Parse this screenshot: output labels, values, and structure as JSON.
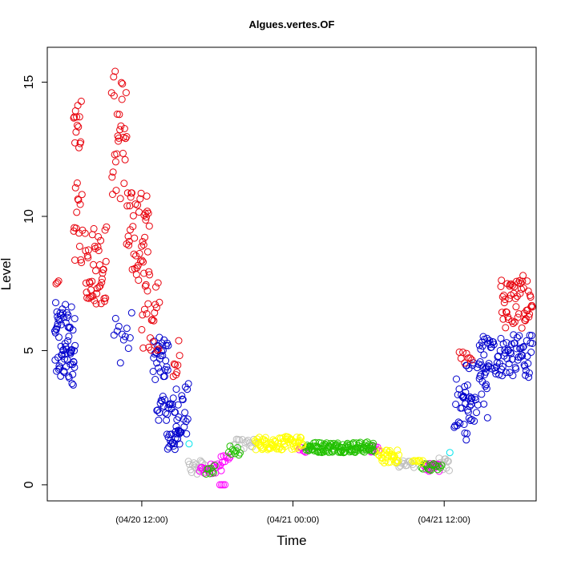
{
  "chart_data": {
    "type": "scatter",
    "title": "Algues.vertes.OF",
    "xlabel": "Time",
    "ylabel": "Level",
    "x_unit": "hours since 04/20 00:00",
    "xlim": [
      4.5,
      43.3
    ],
    "ylim": [
      -0.6,
      16.3
    ],
    "x_ticks": [
      {
        "value": 12,
        "label": "(04/20 12:00)"
      },
      {
        "value": 24,
        "label": "(04/21 00:00)"
      },
      {
        "value": 36,
        "label": "(04/21 12:00)"
      }
    ],
    "y_ticks": [
      {
        "value": 0,
        "label": "0"
      },
      {
        "value": 5,
        "label": "5"
      },
      {
        "value": 10,
        "label": "10"
      },
      {
        "value": 15,
        "label": "15"
      }
    ],
    "grid": false,
    "legend": "none",
    "marker": "open-circle",
    "colors": {
      "red": "#e8000b",
      "blue": "#0000cc",
      "cyan": "#00e5ee",
      "gray": "#bebebe",
      "magenta": "#ff00ff",
      "green": "#22c000",
      "yellow": "#ffff00"
    },
    "series": [
      {
        "color": "blue",
        "segments": [
          {
            "x": [
              5.1,
              6.7
            ],
            "y": [
              [
                3.7,
                6.8
              ]
            ],
            "n": 70
          },
          {
            "x": [
              9.8,
              11.2
            ],
            "y": [
              [
                4.5,
                6.5
              ]
            ],
            "n": 12
          },
          {
            "x": [
              12.9,
              14.1
            ],
            "y": [
              [
                3.9,
                5.5
              ]
            ],
            "n": 30
          },
          {
            "x": [
              13.2,
              14.5
            ],
            "y": [
              [
                2.4,
                3.3
              ]
            ],
            "n": 20
          },
          {
            "x": [
              14.0,
              15.0
            ],
            "y": [
              [
                1.2,
                2.2
              ]
            ],
            "n": 20
          },
          {
            "x": [
              14.6,
              15.7
            ],
            "y": [
              [
                1.7,
                3.8
              ]
            ],
            "n": 24
          },
          {
            "x": [
              36.8,
              38.2
            ],
            "y": [
              [
                1.6,
                4.0
              ]
            ],
            "n": 26
          },
          {
            "x": [
              37.5,
              39.5
            ],
            "y": [
              [
                2.3,
                4.6
              ]
            ],
            "n": 35
          },
          {
            "x": [
              38.8,
              43.0
            ],
            "y": [
              [
                4.0,
                5.6
              ]
            ],
            "n": 85
          }
        ]
      },
      {
        "color": "red",
        "segments": [
          {
            "x": [
              5.2,
              5.4
            ],
            "y": [
              [
                7.2,
                7.6
              ]
            ],
            "n": 3
          },
          {
            "x": [
              6.6,
              7.2
            ],
            "y": [
              [
                12.5,
                14.3
              ]
            ],
            "n": 14
          },
          {
            "x": [
              6.6,
              7.3
            ],
            "y": [
              [
                8.2,
                11.3
              ]
            ],
            "n": 16
          },
          {
            "x": [
              7.5,
              9.2
            ],
            "y": [
              [
                6.7,
                9.8
              ]
            ],
            "n": 45
          },
          {
            "x": [
              9.6,
              10.8
            ],
            "y": [
              [
                10.5,
                15.6
              ]
            ],
            "n": 30
          },
          {
            "x": [
              10.8,
              12.6
            ],
            "y": [
              [
                7.6,
                11.0
              ]
            ],
            "n": 45
          },
          {
            "x": [
              12.0,
              13.4
            ],
            "y": [
              [
                5.0,
                8.0
              ]
            ],
            "n": 26
          },
          {
            "x": [
              14.5,
              15.0
            ],
            "y": [
              [
                4.0,
                5.4
              ]
            ],
            "n": 8
          },
          {
            "x": [
              37.2,
              38.2
            ],
            "y": [
              [
                4.5,
                5.0
              ]
            ],
            "n": 8
          },
          {
            "x": [
              40.5,
              43.0
            ],
            "y": [
              [
                5.8,
                7.8
              ]
            ],
            "n": 55
          }
        ]
      },
      {
        "color": "cyan",
        "segments": [
          {
            "x": [
              15.7,
              15.8
            ],
            "y": [
              [
                1.5,
                1.6
              ]
            ],
            "n": 1
          },
          {
            "x": [
              36.4,
              36.5
            ],
            "y": [
              [
                1.2,
                1.2
              ]
            ],
            "n": 1
          }
        ]
      },
      {
        "color": "gray",
        "segments": [
          {
            "x": [
              15.7,
              17.0
            ],
            "y": [
              [
                0.4,
                0.9
              ]
            ],
            "n": 16
          },
          {
            "x": [
              19.3,
              21.0
            ],
            "y": [
              [
                1.3,
                1.7
              ]
            ],
            "n": 16
          },
          {
            "x": [
              32.2,
              33.6
            ],
            "y": [
              [
                0.6,
                0.9
              ]
            ],
            "n": 14
          },
          {
            "x": [
              35.6,
              36.4
            ],
            "y": [
              [
                0.5,
                1.0
              ]
            ],
            "n": 12
          }
        ]
      },
      {
        "color": "magenta",
        "segments": [
          {
            "x": [
              16.6,
              18.3
            ],
            "y": [
              [
                0.4,
                0.8
              ]
            ],
            "n": 20
          },
          {
            "x": [
              18.2,
              18.6
            ],
            "y": [
              [
                0.0,
                0.0
              ]
            ],
            "n": 4
          },
          {
            "x": [
              18.3,
              19.0
            ],
            "y": [
              [
                0.8,
                1.1
              ]
            ],
            "n": 8
          },
          {
            "x": [
              24.5,
              25.0
            ],
            "y": [
              [
                1.2,
                1.4
              ]
            ],
            "n": 6
          },
          {
            "x": [
              30.2,
              30.8
            ],
            "y": [
              [
                1.2,
                1.5
              ]
            ],
            "n": 8
          },
          {
            "x": [
              34.4,
              35.6
            ],
            "y": [
              [
                0.5,
                0.8
              ]
            ],
            "n": 22
          }
        ]
      },
      {
        "color": "green",
        "segments": [
          {
            "x": [
              17.1,
              17.8
            ],
            "y": [
              [
                0.4,
                0.8
              ]
            ],
            "n": 8
          },
          {
            "x": [
              18.9,
              19.8
            ],
            "y": [
              [
                1.1,
                1.5
              ]
            ],
            "n": 10
          },
          {
            "x": [
              25.0,
              30.5
            ],
            "y": [
              [
                1.2,
                1.6
              ]
            ],
            "n": 120
          },
          {
            "x": [
              34.2,
              35.8
            ],
            "y": [
              [
                0.5,
                0.8
              ]
            ],
            "n": 16
          }
        ]
      },
      {
        "color": "yellow",
        "segments": [
          {
            "x": [
              21.0,
              24.8
            ],
            "y": [
              [
                1.3,
                1.8
              ]
            ],
            "n": 70
          },
          {
            "x": [
              30.8,
              32.4
            ],
            "y": [
              [
                0.8,
                1.3
              ]
            ],
            "n": 30
          },
          {
            "x": [
              33.5,
              34.3
            ],
            "y": [
              [
                0.8,
                0.95
              ]
            ],
            "n": 8
          }
        ]
      }
    ]
  }
}
